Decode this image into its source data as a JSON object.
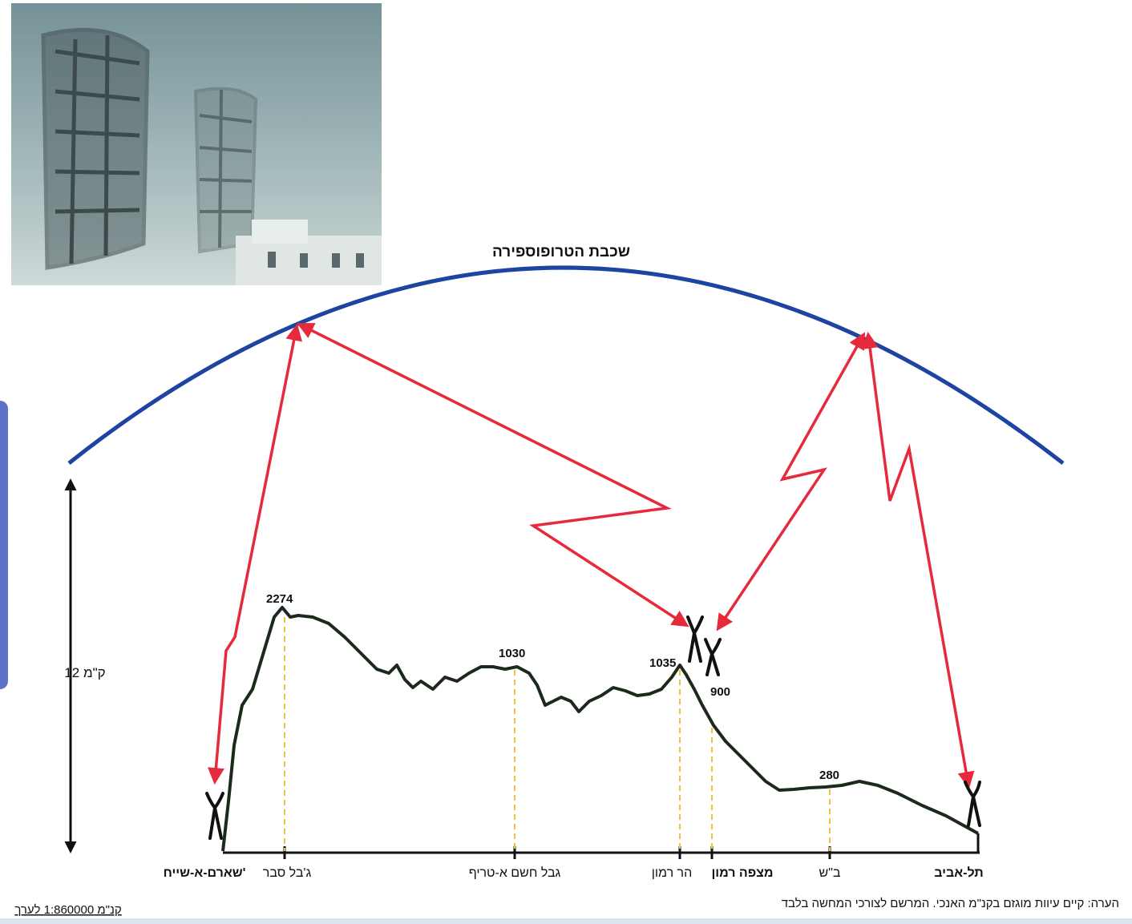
{
  "diagram": {
    "layer_label": "שכבת הטרופוספירה",
    "height_label": "12 ק\"מ",
    "peaks": [
      {
        "id": "peak-gebel-sabar",
        "value": "2274"
      },
      {
        "id": "peak-gevel-chashem",
        "value": "1030"
      },
      {
        "id": "peak-har-ramon",
        "value": "1035"
      },
      {
        "id": "peak-mitzpe-ramon",
        "value": "900"
      },
      {
        "id": "peak-beer-sheva",
        "value": "280"
      }
    ],
    "locations": [
      {
        "id": "sharm",
        "label": "שארם-א-שייח'"
      },
      {
        "id": "gebel-sabar",
        "label": "ג'בל סבר"
      },
      {
        "id": "gevel-chashem",
        "label": "גבל חשם א-טריף"
      },
      {
        "id": "har-ramon",
        "label": "הר רמון"
      },
      {
        "id": "mitzpe-ramon",
        "label": "מצפה רמון"
      },
      {
        "id": "beer-sheva",
        "label": "ב\"ש"
      },
      {
        "id": "tel-aviv",
        "label": "תל-אביב"
      }
    ],
    "scale_note": "קנ\"מ 1:860000 לערך",
    "footnote": "הערה: קיים עיוות מוגזם בקנ\"מ האנכי. המרשם לצורכי המחשה בלבד",
    "colors": {
      "arc": "#1c44a0",
      "signal": "#e62a3c",
      "terrain": "#1b2a1b",
      "guide": "#f0c040"
    }
  }
}
